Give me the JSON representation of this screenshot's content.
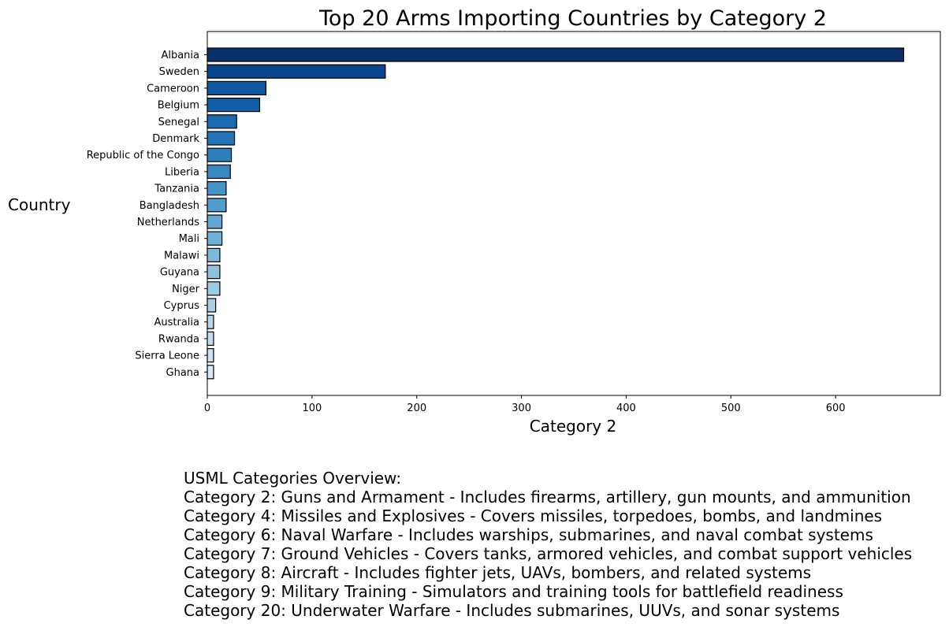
{
  "chart_data": {
    "type": "bar",
    "orientation": "horizontal",
    "title": "Top 20 Arms Importing Countries by Category 2",
    "xlabel": "Category 2",
    "ylabel": "Country",
    "xlim": [
      0,
      700
    ],
    "xticks": [
      0,
      100,
      200,
      300,
      400,
      500,
      600
    ],
    "grid": false,
    "categories": [
      "Albania",
      "Sweden",
      "Cameroon",
      "Belgium",
      "Senegal",
      "Denmark",
      "Republic of the Congo",
      "Liberia",
      "Tanzania",
      "Bangladesh",
      "Netherlands",
      "Mali",
      "Malawi",
      "Guyana",
      "Niger",
      "Cyprus",
      "Australia",
      "Rwanda",
      "Sierra Leone",
      "Ghana"
    ],
    "values": [
      665,
      170,
      56,
      50,
      28,
      26,
      23,
      22,
      18,
      18,
      14,
      14,
      12,
      12,
      12,
      8,
      6,
      6,
      6,
      6
    ],
    "bar_colors": [
      "#08306b",
      "#08468c",
      "#0c57a0",
      "#135fa7",
      "#1b6aaf",
      "#2474b7",
      "#2e7ebc",
      "#3989c1",
      "#4594c7",
      "#529dcc",
      "#60a6d2",
      "#6fb0d7",
      "#7fb9da",
      "#8dc1dd",
      "#9ccae1",
      "#abd0e6",
      "#b8d5ea",
      "#c4dbee",
      "#cee3f2",
      "#d9e8f5"
    ],
    "edge_color": "#000000"
  },
  "notes": {
    "lines": [
      "USML Categories Overview:",
      "Category 2: Guns and Armament - Includes firearms, artillery, gun mounts, and ammunition",
      "Category 4: Missiles and Explosives - Covers missiles, torpedoes, bombs, and landmines",
      "Category 6: Naval Warfare - Includes warships, submarines, and naval combat systems",
      "Category 7: Ground Vehicles - Covers tanks, armored vehicles, and combat support vehicles",
      "Category 8: Aircraft - Includes fighter jets, UAVs, bombers, and related systems",
      "Category 9: Military Training - Simulators and training tools for battlefield readiness",
      "Category 20: Underwater Warfare - Includes submarines, UUVs, and sonar systems"
    ]
  }
}
